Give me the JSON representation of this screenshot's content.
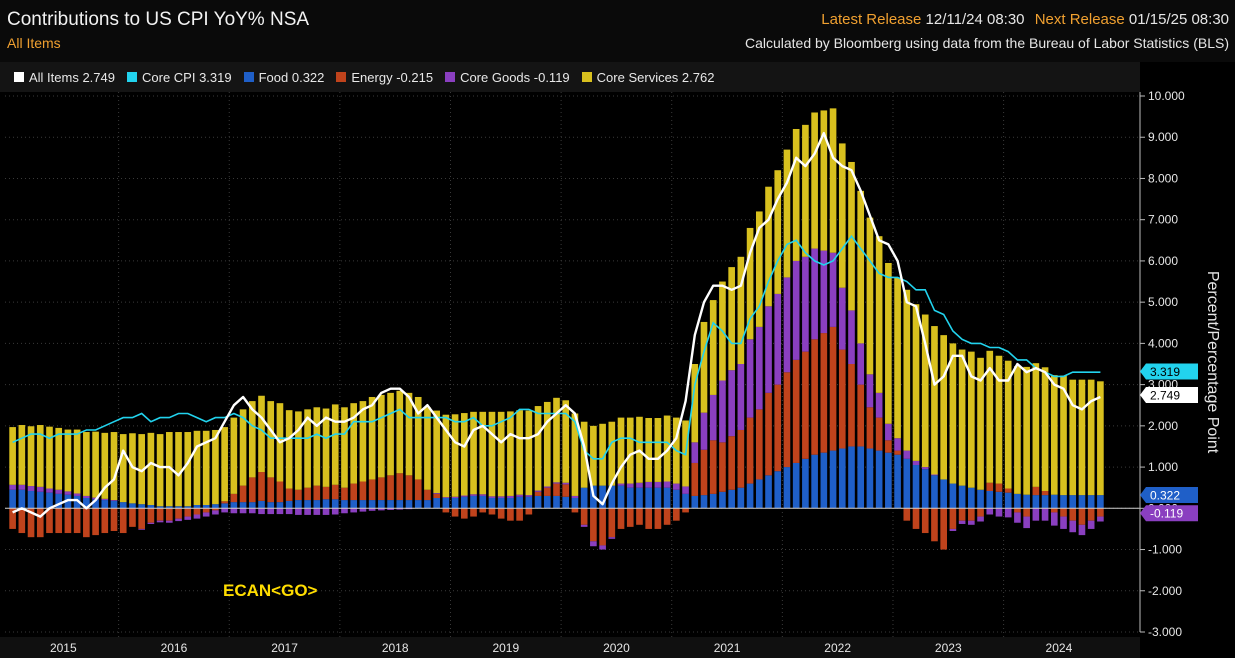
{
  "header": {
    "title": "Contributions to US CPI YoY% NSA",
    "subtitle": "All Items",
    "latest_label": "Latest Release",
    "latest_value": "12/11/24 08:30",
    "next_label": "Next Release",
    "next_value": "01/15/25 08:30",
    "source": "Calculated by Bloomberg using data from the Bureau of Labor Statistics (BLS)"
  },
  "colors": {
    "all_items": "#ffffff",
    "core_cpi": "#22d3ee",
    "food": "#1f5fc8",
    "energy": "#c0431c",
    "core_goods": "#8a3fc0",
    "core_services": "#d8c01e"
  },
  "watermark": "ECAN<GO>",
  "chart_data": {
    "type": "bar",
    "stacked": true,
    "ylabel": "Percent/Percentage Point",
    "ylim": [
      -3,
      10
    ],
    "yticks": [
      "10.000",
      "9.000",
      "8.000",
      "7.000",
      "6.000",
      "5.000",
      "4.000",
      "3.000",
      "2.000",
      "1.000",
      "0.000",
      "-1.000",
      "-2.000",
      "-3.000"
    ],
    "x_years": [
      "2015",
      "2016",
      "2017",
      "2018",
      "2019",
      "2020",
      "2021",
      "2022",
      "2023",
      "2024"
    ],
    "legend": [
      {
        "key": "all_items",
        "text": "All Items 2.749"
      },
      {
        "key": "core_cpi",
        "text": "Core CPI 3.319"
      },
      {
        "key": "food",
        "text": "Food 0.322"
      },
      {
        "key": "energy",
        "text": "Energy -0.215"
      },
      {
        "key": "core_goods",
        "text": "Core Goods -0.119"
      },
      {
        "key": "core_services",
        "text": "Core Services 2.762"
      }
    ],
    "last_value_labels": [
      {
        "key": "core_cpi",
        "text": "3.319",
        "value": 3.319
      },
      {
        "key": "all_items",
        "text": "2.749",
        "value": 2.749
      },
      {
        "key": "food",
        "text": "0.322",
        "value": 0.322
      },
      {
        "key": "core_goods",
        "text": "-0.119",
        "value": -0.119
      }
    ],
    "all_items": [
      -0.1,
      0.0,
      -0.1,
      -0.2,
      0.0,
      0.1,
      0.2,
      0.2,
      0.0,
      0.2,
      0.5,
      0.7,
      1.4,
      1.0,
      0.9,
      1.1,
      1.0,
      1.0,
      0.8,
      1.1,
      1.5,
      1.6,
      1.7,
      2.1,
      2.5,
      2.7,
      2.4,
      2.2,
      1.9,
      1.6,
      1.7,
      1.9,
      2.2,
      2.0,
      2.2,
      2.1,
      2.1,
      2.2,
      2.4,
      2.5,
      2.8,
      2.9,
      2.9,
      2.7,
      2.3,
      2.5,
      2.2,
      1.9,
      1.6,
      1.5,
      1.9,
      2.0,
      1.8,
      1.6,
      1.8,
      1.7,
      1.7,
      1.8,
      2.1,
      2.3,
      2.5,
      2.3,
      1.5,
      0.3,
      0.1,
      0.6,
      1.0,
      1.3,
      1.4,
      1.2,
      1.2,
      1.4,
      1.7,
      2.6,
      4.2,
      5.0,
      5.4,
      5.4,
      5.3,
      5.4,
      6.2,
      6.8,
      7.0,
      7.5,
      7.9,
      8.5,
      8.3,
      8.6,
      9.1,
      8.5,
      8.3,
      8.2,
      7.7,
      7.1,
      6.5,
      6.4,
      6.0,
      5.0,
      4.9,
      4.0,
      3.0,
      3.2,
      3.7,
      3.7,
      3.2,
      3.1,
      3.4,
      3.1,
      3.1,
      3.5,
      3.3,
      3.4,
      3.3,
      3.0,
      2.9,
      2.5,
      2.4,
      2.6,
      2.7
    ],
    "core_cpi": [
      1.6,
      1.7,
      1.8,
      1.8,
      1.7,
      1.8,
      1.8,
      1.8,
      1.9,
      1.9,
      2.0,
      2.1,
      2.2,
      2.2,
      2.3,
      2.1,
      2.2,
      2.2,
      2.3,
      2.3,
      2.2,
      2.1,
      2.2,
      2.2,
      2.3,
      2.2,
      2.0,
      1.9,
      1.7,
      1.7,
      1.7,
      1.7,
      1.7,
      1.8,
      1.7,
      1.8,
      1.8,
      2.1,
      2.1,
      2.1,
      2.2,
      2.3,
      2.4,
      2.2,
      2.2,
      2.2,
      2.2,
      2.2,
      2.1,
      2.1,
      2.2,
      2.0,
      2.0,
      2.1,
      2.2,
      2.4,
      2.4,
      2.3,
      2.3,
      2.3,
      2.3,
      2.1,
      1.4,
      1.2,
      1.2,
      1.6,
      1.7,
      1.7,
      1.6,
      1.6,
      1.6,
      1.6,
      1.4,
      1.3,
      3.0,
      3.8,
      4.5,
      4.3,
      4.0,
      4.0,
      4.6,
      4.9,
      5.5,
      6.0,
      6.4,
      6.5,
      6.2,
      6.0,
      5.9,
      6.0,
      6.3,
      6.6,
      6.3,
      6.0,
      5.7,
      5.6,
      5.6,
      5.5,
      5.3,
      5.3,
      4.8,
      4.7,
      4.3,
      4.1,
      4.0,
      4.0,
      3.9,
      3.9,
      3.8,
      3.6,
      3.6,
      3.4,
      3.3,
      3.2,
      3.2,
      3.3,
      3.3,
      3.3,
      3.3
    ],
    "food": [
      0.45,
      0.45,
      0.42,
      0.4,
      0.38,
      0.35,
      0.33,
      0.3,
      0.25,
      0.22,
      0.2,
      0.18,
      0.15,
      0.12,
      0.1,
      0.08,
      0.05,
      0.05,
      0.05,
      0.05,
      0.08,
      0.08,
      0.1,
      0.12,
      0.15,
      0.15,
      0.15,
      0.18,
      0.15,
      0.15,
      0.18,
      0.2,
      0.2,
      0.2,
      0.22,
      0.22,
      0.2,
      0.2,
      0.2,
      0.2,
      0.2,
      0.2,
      0.2,
      0.2,
      0.2,
      0.2,
      0.25,
      0.25,
      0.25,
      0.28,
      0.3,
      0.3,
      0.25,
      0.25,
      0.25,
      0.28,
      0.28,
      0.3,
      0.3,
      0.3,
      0.28,
      0.25,
      0.5,
      0.55,
      0.55,
      0.55,
      0.55,
      0.5,
      0.5,
      0.5,
      0.5,
      0.5,
      0.45,
      0.35,
      0.3,
      0.32,
      0.35,
      0.4,
      0.45,
      0.5,
      0.6,
      0.7,
      0.8,
      0.9,
      1.0,
      1.1,
      1.2,
      1.3,
      1.35,
      1.4,
      1.45,
      1.5,
      1.5,
      1.45,
      1.4,
      1.35,
      1.3,
      1.2,
      1.05,
      0.95,
      0.8,
      0.7,
      0.6,
      0.55,
      0.5,
      0.45,
      0.42,
      0.4,
      0.38,
      0.35,
      0.33,
      0.32,
      0.32,
      0.33,
      0.32,
      0.32,
      0.32,
      0.32,
      0.32
    ],
    "energy": [
      -0.5,
      -0.6,
      -0.7,
      -0.7,
      -0.6,
      -0.6,
      -0.6,
      -0.6,
      -0.7,
      -0.65,
      -0.6,
      -0.55,
      -0.6,
      -0.45,
      -0.5,
      -0.35,
      -0.3,
      -0.3,
      -0.25,
      -0.2,
      -0.15,
      -0.1,
      -0.05,
      0.05,
      0.2,
      0.4,
      0.6,
      0.7,
      0.6,
      0.5,
      0.3,
      0.25,
      0.3,
      0.35,
      0.3,
      0.35,
      0.3,
      0.4,
      0.45,
      0.5,
      0.55,
      0.6,
      0.65,
      0.6,
      0.5,
      0.25,
      0.1,
      -0.1,
      -0.2,
      -0.25,
      -0.2,
      -0.1,
      -0.15,
      -0.25,
      -0.3,
      -0.3,
      -0.15,
      0.1,
      0.2,
      0.3,
      0.3,
      -0.1,
      -0.4,
      -0.8,
      -0.9,
      -0.7,
      -0.5,
      -0.45,
      -0.4,
      -0.5,
      -0.5,
      -0.4,
      -0.3,
      -0.1,
      0.8,
      1.1,
      1.3,
      1.2,
      1.3,
      1.4,
      1.6,
      1.7,
      2.0,
      2.1,
      2.3,
      2.5,
      2.6,
      2.8,
      2.9,
      3.0,
      2.4,
      2.0,
      1.5,
      1.0,
      0.8,
      0.3,
      0.1,
      -0.3,
      -0.5,
      -0.6,
      -0.8,
      -1.0,
      -0.5,
      -0.3,
      -0.3,
      -0.2,
      0.2,
      0.2,
      0.1,
      -0.1,
      -0.2,
      0.2,
      0.1,
      -0.1,
      -0.2,
      -0.3,
      -0.4,
      -0.3,
      -0.2
    ],
    "core_goods": [
      0.12,
      0.12,
      0.12,
      0.12,
      0.1,
      0.1,
      0.08,
      0.06,
      0.05,
      0.04,
      0.03,
      0.02,
      0.0,
      0.0,
      -0.02,
      -0.03,
      -0.04,
      -0.05,
      -0.06,
      -0.08,
      -0.1,
      -0.1,
      -0.1,
      -0.1,
      -0.12,
      -0.12,
      -0.12,
      -0.14,
      -0.14,
      -0.14,
      -0.14,
      -0.16,
      -0.16,
      -0.16,
      -0.16,
      -0.15,
      -0.12,
      -0.1,
      -0.08,
      -0.06,
      -0.05,
      -0.04,
      -0.03,
      -0.02,
      0.0,
      0.0,
      0.02,
      0.02,
      0.03,
      0.03,
      0.04,
      0.04,
      0.04,
      0.04,
      0.05,
      0.05,
      0.04,
      0.03,
      0.03,
      0.03,
      0.04,
      0.05,
      -0.05,
      -0.12,
      -0.1,
      -0.04,
      0.05,
      0.1,
      0.12,
      0.14,
      0.14,
      0.15,
      0.15,
      0.18,
      0.5,
      0.9,
      1.1,
      1.5,
      1.6,
      1.6,
      1.9,
      2.0,
      2.1,
      2.2,
      2.3,
      2.4,
      2.3,
      2.2,
      2.0,
      1.8,
      1.5,
      1.3,
      1.0,
      0.8,
      0.6,
      0.4,
      0.3,
      0.2,
      0.1,
      0.05,
      0.02,
      0.0,
      -0.05,
      -0.08,
      -0.1,
      -0.12,
      -0.15,
      -0.2,
      -0.22,
      -0.25,
      -0.28,
      -0.3,
      -0.3,
      -0.32,
      -0.3,
      -0.28,
      -0.25,
      -0.2,
      -0.12
    ],
    "core_services": [
      1.4,
      1.45,
      1.45,
      1.5,
      1.5,
      1.5,
      1.5,
      1.55,
      1.55,
      1.6,
      1.6,
      1.65,
      1.65,
      1.7,
      1.7,
      1.75,
      1.75,
      1.8,
      1.8,
      1.8,
      1.8,
      1.8,
      1.8,
      1.8,
      1.85,
      1.85,
      1.85,
      1.85,
      1.85,
      1.9,
      1.9,
      1.9,
      1.9,
      1.9,
      1.9,
      1.95,
      1.95,
      1.95,
      1.95,
      2.0,
      2.0,
      2.0,
      2.0,
      2.0,
      2.0,
      2.0,
      2.0,
      2.0,
      2.0,
      2.0,
      2.0,
      2.0,
      2.05,
      2.05,
      2.05,
      2.05,
      2.05,
      2.05,
      2.05,
      2.05,
      2.0,
      2.0,
      1.6,
      1.45,
      1.5,
      1.55,
      1.6,
      1.6,
      1.6,
      1.55,
      1.55,
      1.6,
      1.6,
      1.6,
      1.9,
      2.2,
      2.3,
      2.4,
      2.5,
      2.6,
      2.7,
      2.8,
      2.9,
      3.0,
      3.1,
      3.2,
      3.2,
      3.3,
      3.4,
      3.5,
      3.5,
      3.6,
      3.7,
      3.8,
      3.8,
      3.9,
      3.9,
      3.9,
      3.8,
      3.7,
      3.6,
      3.5,
      3.4,
      3.3,
      3.3,
      3.2,
      3.2,
      3.1,
      3.1,
      3.1,
      3.1,
      3.0,
      3.0,
      2.9,
      2.9,
      2.8,
      2.8,
      2.8,
      2.76
    ]
  }
}
